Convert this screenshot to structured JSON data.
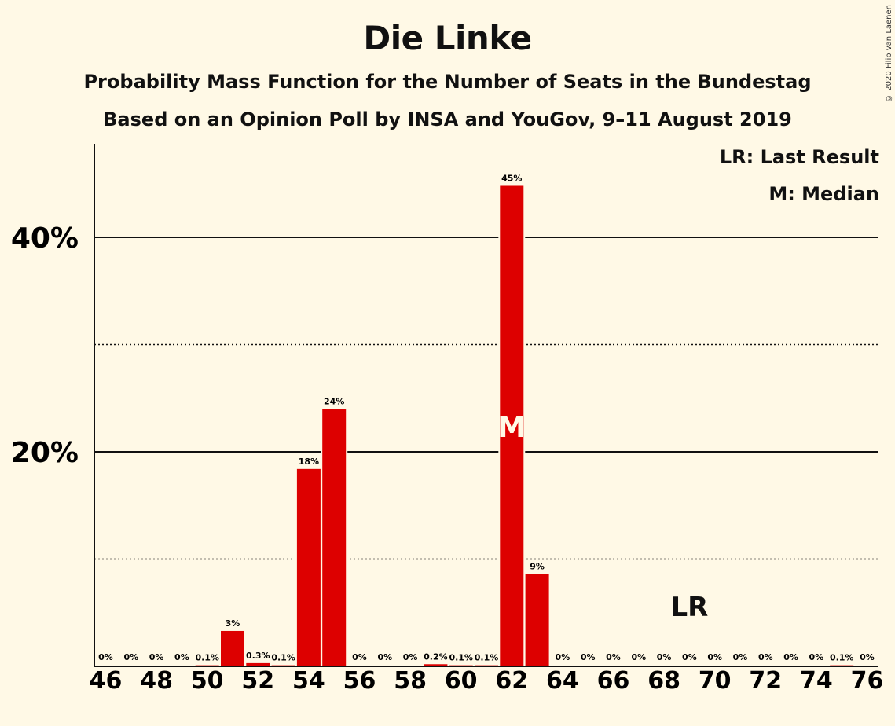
{
  "chart_data": {
    "type": "bar",
    "title": "Die Linke",
    "subtitle": "Probability Mass Function for the Number of Seats in the Bundestag",
    "subtitle2": "Based on an Opinion Poll by INSA and YouGov, 9–11 August 2019",
    "copyright": "© 2020 Filip van Laenen",
    "legend": [
      "LR: Last Result",
      "M: Median"
    ],
    "legend_position": "top-right",
    "x": [
      46,
      47,
      48,
      49,
      50,
      51,
      52,
      53,
      54,
      55,
      56,
      57,
      58,
      59,
      60,
      61,
      62,
      63,
      64,
      65,
      66,
      67,
      68,
      69,
      70,
      71,
      72,
      73,
      74,
      75,
      76
    ],
    "values": [
      0,
      0,
      0,
      0,
      0.1,
      3.3,
      0.3,
      0.1,
      18.4,
      24.0,
      0,
      0,
      0,
      0.2,
      0.1,
      0.1,
      44.8,
      8.6,
      0,
      0,
      0,
      0,
      0,
      0,
      0,
      0,
      0,
      0,
      0,
      0.1,
      0
    ],
    "labels": [
      "0%",
      "0%",
      "0%",
      "0%",
      "0.1%",
      "3%",
      "0.3%",
      "0.1%",
      "18%",
      "24%",
      "0%",
      "0%",
      "0%",
      "0.2%",
      "0.1%",
      "0.1%",
      "45%",
      "9%",
      "0%",
      "0%",
      "0%",
      "0%",
      "0%",
      "0%",
      "0%",
      "0%",
      "0%",
      "0%",
      "0%",
      "0.1%",
      "0%"
    ],
    "x_tick_labels": [
      "46",
      "48",
      "50",
      "52",
      "54",
      "56",
      "58",
      "60",
      "62",
      "64",
      "66",
      "68",
      "70",
      "72",
      "74",
      "76"
    ],
    "y_tick_labels": [
      "20%",
      "40%"
    ],
    "ylim": [
      0,
      49
    ],
    "grid": {
      "solid": [
        20,
        40
      ],
      "dotted": [
        10,
        30
      ]
    },
    "median": {
      "seat": 62,
      "marker": "M"
    },
    "last_result": {
      "seat": 69,
      "marker": "LR"
    },
    "bar_color": "#dd0000",
    "background_color": "#fff9e6"
  }
}
